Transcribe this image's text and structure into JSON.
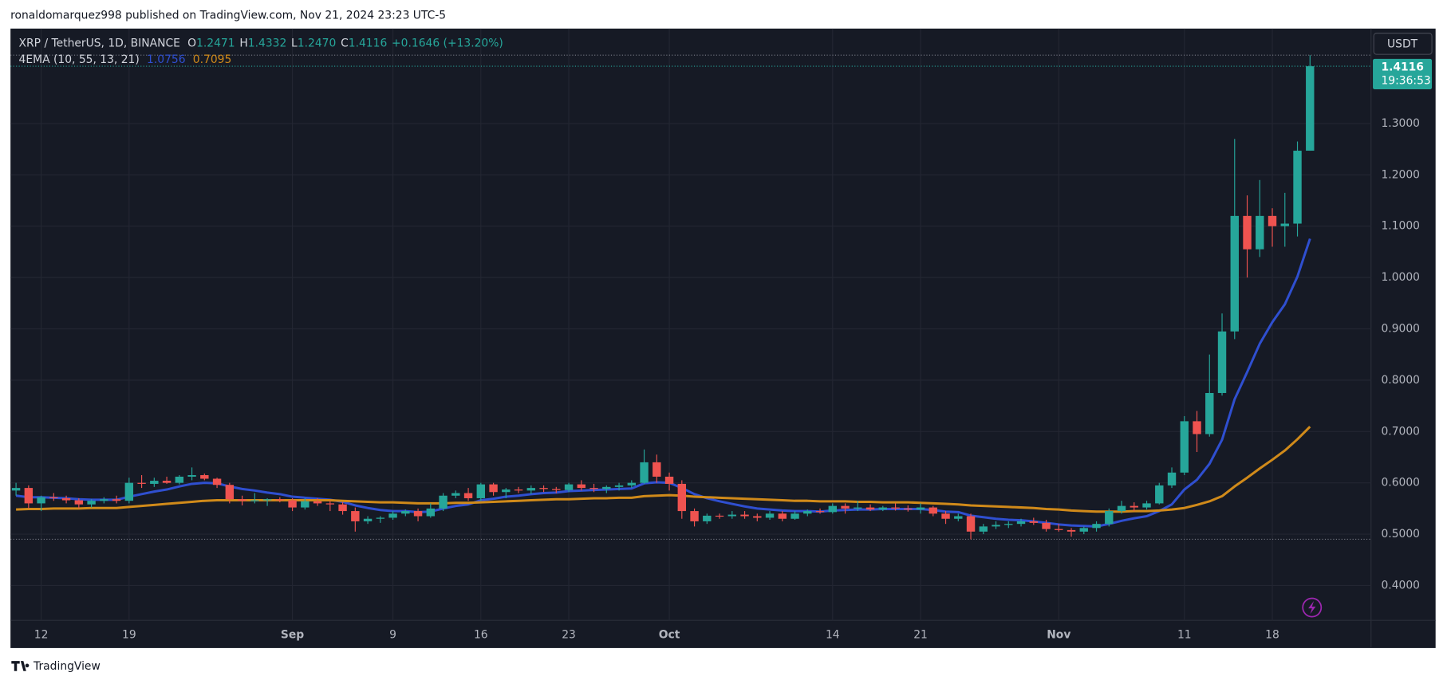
{
  "header": "ronaldomarquez998 published on TradingView.com, Nov 21, 2024 23:23 UTC-5",
  "footer": "TradingView",
  "chart_data": {
    "type": "candlestick",
    "title": "XRP / TetherUS, 1D, BINANCE",
    "ohlc_keys": [
      "O",
      "H",
      "L",
      "C"
    ],
    "ohlc_values": [
      "1.2471",
      "1.4332",
      "1.2470",
      "1.4116"
    ],
    "change": "+0.1646 (+13.20%)",
    "indicator": "4EMA (10, 55, 13, 21)",
    "currency": "USDT",
    "price_label": "1.4116",
    "countdown": "19:36:53",
    "up_color": "#26a69a",
    "down_color": "#ef5350",
    "grid": true,
    "ylim": [
      0.332,
      1.485
    ],
    "yticks": [
      {
        "value": 0.4,
        "label": "0.4000"
      },
      {
        "value": 0.5,
        "label": "0.5000"
      },
      {
        "value": 0.6,
        "label": "0.6000"
      },
      {
        "value": 0.7,
        "label": "0.7000"
      },
      {
        "value": 0.8,
        "label": "0.8000"
      },
      {
        "value": 0.9,
        "label": "0.9000"
      },
      {
        "value": 1.0,
        "label": "1.0000"
      },
      {
        "value": 1.1,
        "label": "1.1000"
      },
      {
        "value": 1.2,
        "label": "1.2000"
      },
      {
        "value": 1.3,
        "label": "1.3000"
      }
    ],
    "categories": [
      null,
      null,
      "12",
      null,
      null,
      null,
      null,
      null,
      null,
      "19",
      null,
      null,
      null,
      null,
      null,
      null,
      null,
      null,
      null,
      null,
      null,
      null,
      "Sep",
      null,
      null,
      null,
      null,
      null,
      null,
      null,
      "9",
      null,
      null,
      null,
      null,
      null,
      null,
      "16",
      null,
      null,
      null,
      null,
      null,
      null,
      "23",
      null,
      null,
      null,
      null,
      null,
      null,
      null,
      "Oct",
      null,
      null,
      null,
      null,
      null,
      null,
      null,
      null,
      null,
      null,
      null,
      null,
      "14",
      null,
      null,
      null,
      null,
      null,
      null,
      "21",
      null,
      null,
      null,
      null,
      null,
      null,
      null,
      null,
      null,
      null,
      "Nov",
      null,
      null,
      null,
      null,
      null,
      null,
      null,
      null,
      null,
      "11",
      null,
      null,
      null,
      null,
      null,
      null,
      "18",
      null,
      null,
      null
    ],
    "open": [
      0.585,
      0.59,
      0.56,
      0.572,
      0.57,
      0.566,
      0.558,
      0.565,
      0.568,
      0.565,
      0.6,
      0.598,
      0.604,
      0.6,
      0.612,
      0.615,
      0.608,
      0.596,
      0.568,
      0.565,
      0.566,
      0.568,
      0.566,
      0.552,
      0.564,
      0.56,
      0.558,
      0.545,
      0.525,
      0.53,
      0.532,
      0.54,
      0.545,
      0.535,
      0.55,
      0.575,
      0.58,
      0.57,
      0.597,
      0.582,
      0.587,
      0.585,
      0.59,
      0.588,
      0.586,
      0.597,
      0.59,
      0.588,
      0.592,
      0.595,
      0.6,
      0.64,
      0.612,
      0.598,
      0.545,
      0.525,
      0.536,
      0.535,
      0.538,
      0.535,
      0.532,
      0.54,
      0.53,
      0.54,
      0.545,
      0.543,
      0.555,
      0.55,
      0.552,
      0.548,
      0.552,
      0.55,
      0.548,
      0.552,
      0.54,
      0.53,
      0.535,
      0.505,
      0.515,
      0.518,
      0.52,
      0.525,
      0.522,
      0.51,
      0.508,
      0.505,
      0.512,
      0.52,
      0.545,
      0.555,
      0.552,
      0.56,
      0.595,
      0.62,
      0.72,
      0.695,
      0.775,
      0.895,
      1.12,
      1.055,
      1.12,
      1.1,
      1.105,
      1.2471
    ],
    "high": [
      0.6,
      0.595,
      0.575,
      0.58,
      0.575,
      0.57,
      0.568,
      0.572,
      0.575,
      0.61,
      0.615,
      0.61,
      0.612,
      0.615,
      0.63,
      0.618,
      0.61,
      0.6,
      0.575,
      0.58,
      0.57,
      0.572,
      0.57,
      0.57,
      0.57,
      0.565,
      0.562,
      0.552,
      0.535,
      0.535,
      0.545,
      0.548,
      0.55,
      0.56,
      0.58,
      0.585,
      0.59,
      0.6,
      0.6,
      0.59,
      0.592,
      0.595,
      0.595,
      0.592,
      0.6,
      0.605,
      0.598,
      0.595,
      0.6,
      0.605,
      0.665,
      0.655,
      0.62,
      0.605,
      0.55,
      0.54,
      0.54,
      0.545,
      0.545,
      0.54,
      0.545,
      0.545,
      0.545,
      0.548,
      0.55,
      0.56,
      0.56,
      0.565,
      0.558,
      0.555,
      0.56,
      0.556,
      0.56,
      0.555,
      0.545,
      0.54,
      0.54,
      0.52,
      0.525,
      0.525,
      0.53,
      0.532,
      0.528,
      0.52,
      0.512,
      0.515,
      0.525,
      0.55,
      0.565,
      0.562,
      0.565,
      0.6,
      0.63,
      0.73,
      0.74,
      0.85,
      0.93,
      1.27,
      1.16,
      1.19,
      1.135,
      1.165,
      1.265,
      1.4332
    ],
    "low": [
      0.575,
      0.55,
      0.545,
      0.565,
      0.56,
      0.55,
      0.552,
      0.56,
      0.56,
      0.56,
      0.59,
      0.592,
      0.598,
      0.597,
      0.605,
      0.605,
      0.59,
      0.56,
      0.556,
      0.56,
      0.555,
      0.562,
      0.545,
      0.548,
      0.555,
      0.545,
      0.538,
      0.505,
      0.52,
      0.522,
      0.528,
      0.535,
      0.525,
      0.532,
      0.545,
      0.57,
      0.565,
      0.565,
      0.575,
      0.57,
      0.58,
      0.578,
      0.582,
      0.58,
      0.582,
      0.585,
      0.582,
      0.58,
      0.585,
      0.59,
      0.598,
      0.6,
      0.585,
      0.53,
      0.515,
      0.52,
      0.53,
      0.53,
      0.53,
      0.525,
      0.528,
      0.525,
      0.528,
      0.535,
      0.54,
      0.54,
      0.54,
      0.545,
      0.545,
      0.545,
      0.546,
      0.544,
      0.54,
      0.535,
      0.52,
      0.525,
      0.49,
      0.5,
      0.51,
      0.512,
      0.515,
      0.518,
      0.505,
      0.505,
      0.495,
      0.5,
      0.505,
      0.515,
      0.54,
      0.545,
      0.548,
      0.558,
      0.59,
      0.615,
      0.66,
      0.69,
      0.77,
      0.88,
      1.0,
      1.04,
      1.06,
      1.06,
      1.08,
      1.247
    ],
    "close": [
      0.59,
      0.56,
      0.572,
      0.57,
      0.566,
      0.558,
      0.565,
      0.568,
      0.565,
      0.6,
      0.598,
      0.604,
      0.6,
      0.612,
      0.615,
      0.608,
      0.596,
      0.568,
      0.565,
      0.566,
      0.568,
      0.566,
      0.552,
      0.564,
      0.56,
      0.558,
      0.545,
      0.525,
      0.53,
      0.532,
      0.54,
      0.545,
      0.535,
      0.55,
      0.575,
      0.58,
      0.57,
      0.597,
      0.582,
      0.587,
      0.585,
      0.59,
      0.588,
      0.586,
      0.597,
      0.59,
      0.588,
      0.592,
      0.595,
      0.6,
      0.64,
      0.612,
      0.598,
      0.545,
      0.525,
      0.536,
      0.535,
      0.538,
      0.535,
      0.532,
      0.54,
      0.53,
      0.54,
      0.545,
      0.543,
      0.555,
      0.55,
      0.552,
      0.548,
      0.552,
      0.55,
      0.548,
      0.552,
      0.54,
      0.53,
      0.535,
      0.505,
      0.515,
      0.518,
      0.52,
      0.525,
      0.522,
      0.51,
      0.508,
      0.505,
      0.512,
      0.52,
      0.545,
      0.555,
      0.552,
      0.56,
      0.595,
      0.62,
      0.72,
      0.695,
      0.775,
      0.895,
      1.12,
      1.055,
      1.12,
      1.1,
      1.105,
      1.2471,
      1.4116
    ],
    "series": [
      {
        "color": "#2f4fd0",
        "last_label": "1.0756",
        "values": [
          0.575,
          0.572,
          0.572,
          0.571,
          0.57,
          0.568,
          0.567,
          0.567,
          0.567,
          0.573,
          0.578,
          0.583,
          0.587,
          0.593,
          0.598,
          0.6,
          0.599,
          0.593,
          0.588,
          0.585,
          0.581,
          0.578,
          0.573,
          0.571,
          0.569,
          0.567,
          0.563,
          0.556,
          0.551,
          0.547,
          0.545,
          0.545,
          0.543,
          0.544,
          0.55,
          0.555,
          0.558,
          0.566,
          0.569,
          0.573,
          0.575,
          0.578,
          0.58,
          0.581,
          0.584,
          0.585,
          0.586,
          0.587,
          0.588,
          0.589,
          0.599,
          0.601,
          0.6,
          0.59,
          0.578,
          0.57,
          0.564,
          0.559,
          0.554,
          0.55,
          0.548,
          0.546,
          0.545,
          0.545,
          0.544,
          0.546,
          0.547,
          0.548,
          0.548,
          0.549,
          0.549,
          0.549,
          0.549,
          0.547,
          0.544,
          0.543,
          0.536,
          0.533,
          0.53,
          0.528,
          0.527,
          0.525,
          0.522,
          0.519,
          0.517,
          0.516,
          0.515,
          0.52,
          0.526,
          0.531,
          0.535,
          0.545,
          0.558,
          0.587,
          0.606,
          0.637,
          0.684,
          0.763,
          0.816,
          0.871,
          0.913,
          0.948,
          1.002,
          1.0756
        ]
      },
      {
        "color": "#d08a1a",
        "last_label": "0.7095",
        "values": [
          0.548,
          0.549,
          0.549,
          0.55,
          0.55,
          0.55,
          0.551,
          0.551,
          0.551,
          0.553,
          0.555,
          0.557,
          0.559,
          0.561,
          0.563,
          0.565,
          0.566,
          0.566,
          0.566,
          0.566,
          0.566,
          0.566,
          0.566,
          0.566,
          0.566,
          0.566,
          0.565,
          0.564,
          0.563,
          0.562,
          0.562,
          0.561,
          0.56,
          0.56,
          0.56,
          0.561,
          0.561,
          0.562,
          0.563,
          0.564,
          0.565,
          0.566,
          0.567,
          0.568,
          0.568,
          0.569,
          0.57,
          0.57,
          0.571,
          0.571,
          0.574,
          0.575,
          0.576,
          0.575,
          0.573,
          0.572,
          0.571,
          0.57,
          0.569,
          0.568,
          0.567,
          0.566,
          0.565,
          0.565,
          0.564,
          0.564,
          0.564,
          0.563,
          0.563,
          0.562,
          0.562,
          0.562,
          0.561,
          0.56,
          0.559,
          0.558,
          0.556,
          0.555,
          0.554,
          0.553,
          0.552,
          0.551,
          0.549,
          0.548,
          0.546,
          0.545,
          0.544,
          0.544,
          0.544,
          0.545,
          0.545,
          0.546,
          0.548,
          0.551,
          0.557,
          0.564,
          0.574,
          0.593,
          0.61,
          0.628,
          0.645,
          0.663,
          0.685,
          0.7095
        ]
      }
    ]
  }
}
